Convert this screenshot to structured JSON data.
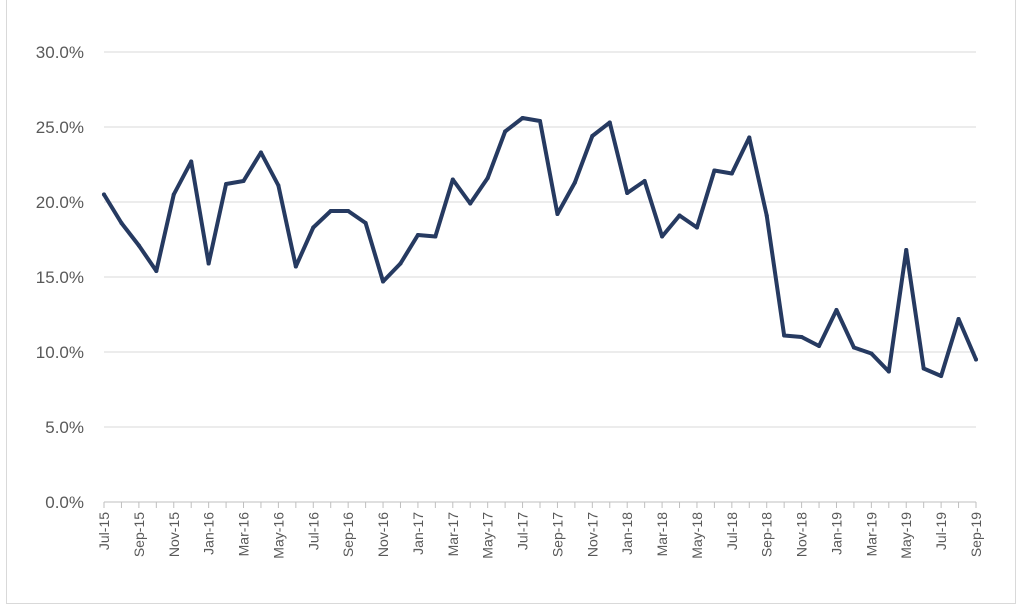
{
  "chart_data": {
    "type": "line",
    "title": "",
    "xlabel": "",
    "ylabel": "",
    "ylim": [
      0,
      30
    ],
    "y_ticks": [
      "0.0%",
      "5.0%",
      "10.0%",
      "15.0%",
      "20.0%",
      "25.0%",
      "30.0%"
    ],
    "grid": true,
    "legend": "none",
    "line_color": "#263a61",
    "x_tick_labels": [
      "Jul-15",
      "Sep-15",
      "Nov-15",
      "Jan-16",
      "Mar-16",
      "May-16",
      "Jul-16",
      "Sep-16",
      "Nov-16",
      "Jan-17",
      "Mar-17",
      "May-17",
      "Jul-17",
      "Sep-17",
      "Nov-17",
      "Jan-18",
      "Mar-18",
      "May-18",
      "Jul-18",
      "Sep-18",
      "Nov-18",
      "Jan-19",
      "Mar-19",
      "May-19",
      "Jul-19",
      "Sep-19"
    ],
    "x": [
      "Jul-15",
      "Aug-15",
      "Sep-15",
      "Oct-15",
      "Nov-15",
      "Dec-15",
      "Jan-16",
      "Feb-16",
      "Mar-16",
      "Apr-16",
      "May-16",
      "Jun-16",
      "Jul-16",
      "Aug-16",
      "Sep-16",
      "Oct-16",
      "Nov-16",
      "Dec-16",
      "Jan-17",
      "Feb-17",
      "Mar-17",
      "Apr-17",
      "May-17",
      "Jun-17",
      "Jul-17",
      "Aug-17",
      "Sep-17",
      "Oct-17",
      "Nov-17",
      "Dec-17",
      "Jan-18",
      "Feb-18",
      "Mar-18",
      "Apr-18",
      "May-18",
      "Jun-18",
      "Jul-18",
      "Aug-18",
      "Sep-18",
      "Oct-18",
      "Nov-18",
      "Dec-18",
      "Jan-19",
      "Feb-19",
      "Mar-19",
      "Apr-19",
      "May-19",
      "Jun-19",
      "Jul-19",
      "Aug-19",
      "Sep-19"
    ],
    "series": [
      {
        "values": [
          20.5,
          18.6,
          17.1,
          15.4,
          20.5,
          22.7,
          15.9,
          21.2,
          21.4,
          23.3,
          21.1,
          15.7,
          18.3,
          19.4,
          19.4,
          18.6,
          14.7,
          15.9,
          17.8,
          17.7,
          21.5,
          19.9,
          21.6,
          24.7,
          25.6,
          25.4,
          19.2,
          21.3,
          24.4,
          25.3,
          20.6,
          21.4,
          17.7,
          19.1,
          18.3,
          22.1,
          21.9,
          24.3,
          19.1,
          11.1,
          11.0,
          10.4,
          12.8,
          10.3,
          9.9,
          8.7,
          16.8,
          8.9,
          8.4,
          12.2,
          9.5
        ]
      }
    ]
  }
}
